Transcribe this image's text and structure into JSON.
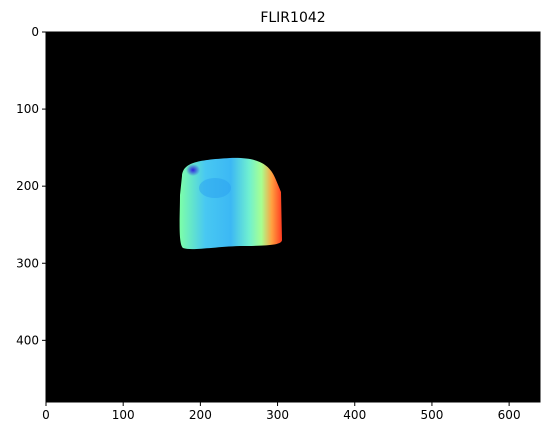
{
  "chart_data": {
    "type": "image",
    "title": "FLIR1042",
    "xlim": [
      0,
      640
    ],
    "xticks": [
      0,
      100,
      200,
      300,
      400,
      500,
      600
    ],
    "ylim": [
      480,
      0
    ],
    "yticks": [
      0,
      100,
      200,
      300,
      400
    ]
  }
}
